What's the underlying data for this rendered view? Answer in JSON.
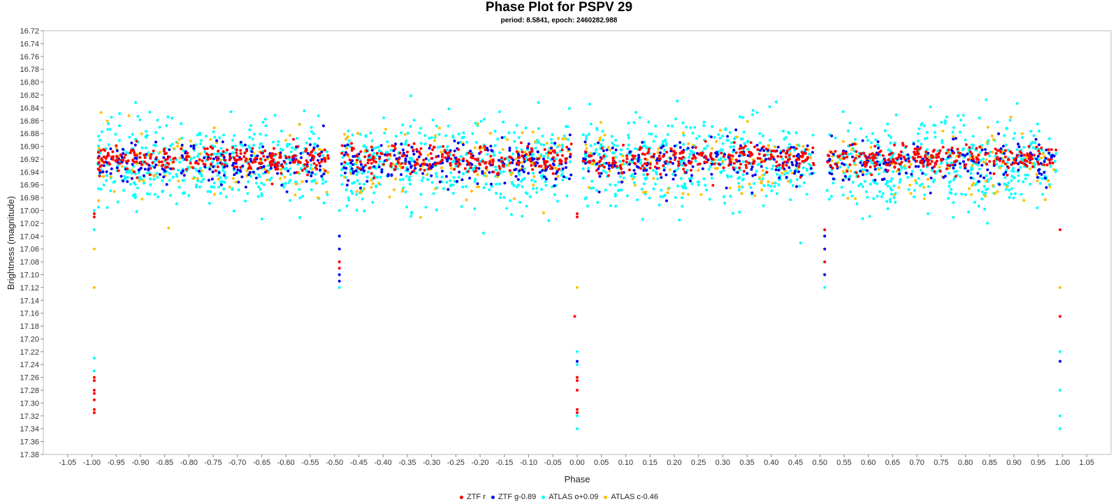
{
  "chart_data": {
    "type": "scatter",
    "title": "Phase Plot for PSPV 29",
    "subtitle": "period: 8.5841, epoch: 2460282.988",
    "xlabel": "Phase",
    "ylabel": "Brightness (magnitude)",
    "xlim": [
      -1.1,
      1.1
    ],
    "ylim": [
      16.72,
      17.38
    ],
    "y_inverted": true,
    "x_ticks": [
      "-1.05",
      "-1.00",
      "-0.95",
      "-0.90",
      "-0.85",
      "-0.80",
      "-0.75",
      "-0.70",
      "-0.65",
      "-0.60",
      "-0.55",
      "-0.50",
      "-0.45",
      "-0.40",
      "-0.35",
      "-0.30",
      "-0.25",
      "-0.20",
      "-0.15",
      "-0.10",
      "-0.05",
      "0.00",
      "0.05",
      "0.10",
      "0.15",
      "0.20",
      "0.25",
      "0.30",
      "0.35",
      "0.40",
      "0.45",
      "0.50",
      "0.55",
      "0.60",
      "0.65",
      "0.70",
      "0.75",
      "0.80",
      "0.85",
      "0.90",
      "0.95",
      "1.00",
      "1.05"
    ],
    "y_ticks": [
      "16.72",
      "16.74",
      "16.76",
      "16.78",
      "16.80",
      "16.82",
      "16.84",
      "16.86",
      "16.88",
      "16.90",
      "16.92",
      "16.94",
      "16.96",
      "16.98",
      "17.00",
      "17.02",
      "17.04",
      "17.06",
      "17.08",
      "17.10",
      "17.12",
      "17.14",
      "17.16",
      "17.18",
      "17.20",
      "17.22",
      "17.24",
      "17.26",
      "17.28",
      "17.30",
      "17.32",
      "17.34",
      "17.36",
      "17.38"
    ],
    "grid": false,
    "legend_position": "bottom-center",
    "series": [
      {
        "name": "ATLAS o+0.09",
        "color": "#00ffff",
        "cloud": {
          "center": 16.925,
          "spread": 0.055,
          "count": 1800
        },
        "eclipse_points": [
          {
            "x": -0.995,
            "y": 17.0
          },
          {
            "x": -0.995,
            "y": 17.03
          },
          {
            "x": -0.995,
            "y": 17.23
          },
          {
            "x": -0.995,
            "y": 17.25
          },
          {
            "x": -0.49,
            "y": 17.0
          },
          {
            "x": -0.49,
            "y": 17.04
          },
          {
            "x": -0.49,
            "y": 17.1
          },
          {
            "x": -0.49,
            "y": 17.12
          },
          {
            "x": 0.0,
            "y": 17.22
          },
          {
            "x": 0.0,
            "y": 17.24
          },
          {
            "x": 0.0,
            "y": 17.26
          },
          {
            "x": 0.0,
            "y": 17.32
          },
          {
            "x": 0.0,
            "y": 17.34
          },
          {
            "x": 0.51,
            "y": 17.04
          },
          {
            "x": 0.51,
            "y": 17.1
          },
          {
            "x": 0.51,
            "y": 17.12
          },
          {
            "x": 0.995,
            "y": 17.22
          },
          {
            "x": 0.995,
            "y": 17.28
          },
          {
            "x": 0.995,
            "y": 17.32
          },
          {
            "x": 0.995,
            "y": 17.34
          }
        ]
      },
      {
        "name": "ATLAS c-0.46",
        "color": "#ffc000",
        "cloud": {
          "center": 16.925,
          "spread": 0.05,
          "count": 420
        },
        "eclipse_points": [
          {
            "x": -0.995,
            "y": 17.06
          },
          {
            "x": -0.995,
            "y": 17.12
          },
          {
            "x": -0.49,
            "y": 17.08
          },
          {
            "x": 0.0,
            "y": 17.12
          },
          {
            "x": 0.995,
            "y": 17.12
          }
        ]
      },
      {
        "name": "ZTF g-0.89",
        "color": "#0000ee",
        "cloud": {
          "center": 16.925,
          "spread": 0.028,
          "count": 750
        },
        "eclipse_points": [
          {
            "x": -0.49,
            "y": 17.04
          },
          {
            "x": -0.49,
            "y": 17.06
          },
          {
            "x": -0.49,
            "y": 17.1
          },
          {
            "x": -0.49,
            "y": 17.11
          },
          {
            "x": 0.0,
            "y": 17.235
          },
          {
            "x": 0.51,
            "y": 17.04
          },
          {
            "x": 0.51,
            "y": 17.06
          },
          {
            "x": 0.51,
            "y": 17.1
          },
          {
            "x": 0.995,
            "y": 17.235
          }
        ]
      },
      {
        "name": "ZTF r",
        "color": "#ff0000",
        "cloud": {
          "center": 16.92,
          "spread": 0.018,
          "count": 1000
        },
        "eclipse_points": [
          {
            "x": -0.995,
            "y": 17.005
          },
          {
            "x": -0.995,
            "y": 17.01
          },
          {
            "x": -0.995,
            "y": 17.26
          },
          {
            "x": -0.995,
            "y": 17.265
          },
          {
            "x": -0.995,
            "y": 17.28
          },
          {
            "x": -0.995,
            "y": 17.285
          },
          {
            "x": -0.995,
            "y": 17.295
          },
          {
            "x": -0.995,
            "y": 17.31
          },
          {
            "x": -0.995,
            "y": 17.315
          },
          {
            "x": -0.49,
            "y": 17.08
          },
          {
            "x": -0.49,
            "y": 17.09
          },
          {
            "x": 0.0,
            "y": 17.005
          },
          {
            "x": 0.0,
            "y": 17.01
          },
          {
            "x": -0.005,
            "y": 17.165
          },
          {
            "x": 0.0,
            "y": 17.26
          },
          {
            "x": 0.0,
            "y": 17.265
          },
          {
            "x": 0.0,
            "y": 17.28
          },
          {
            "x": 0.0,
            "y": 17.31
          },
          {
            "x": 0.0,
            "y": 17.315
          },
          {
            "x": 0.51,
            "y": 17.03
          },
          {
            "x": 0.51,
            "y": 17.08
          },
          {
            "x": 0.995,
            "y": 17.03
          },
          {
            "x": 0.995,
            "y": 17.165
          }
        ]
      }
    ],
    "legend_order": [
      "ZTF r",
      "ZTF g-0.89",
      "ATLAS o+0.09",
      "ATLAS c-0.46"
    ]
  }
}
